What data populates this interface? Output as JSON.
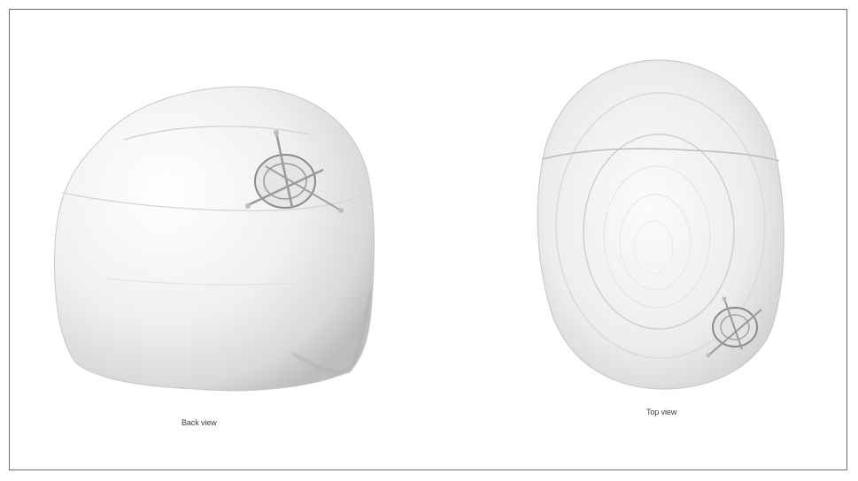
{
  "captions": {
    "back": "Back view",
    "top": "Top view"
  },
  "colors": {
    "background": "#ffffff",
    "frame_border": "#6e6e6e",
    "bone_highlight": "#fafafa",
    "bone_shadow": "#b9b9b9"
  },
  "views": [
    {
      "name": "back-view",
      "caption_key": "back"
    },
    {
      "name": "top-view",
      "caption_key": "top"
    }
  ]
}
